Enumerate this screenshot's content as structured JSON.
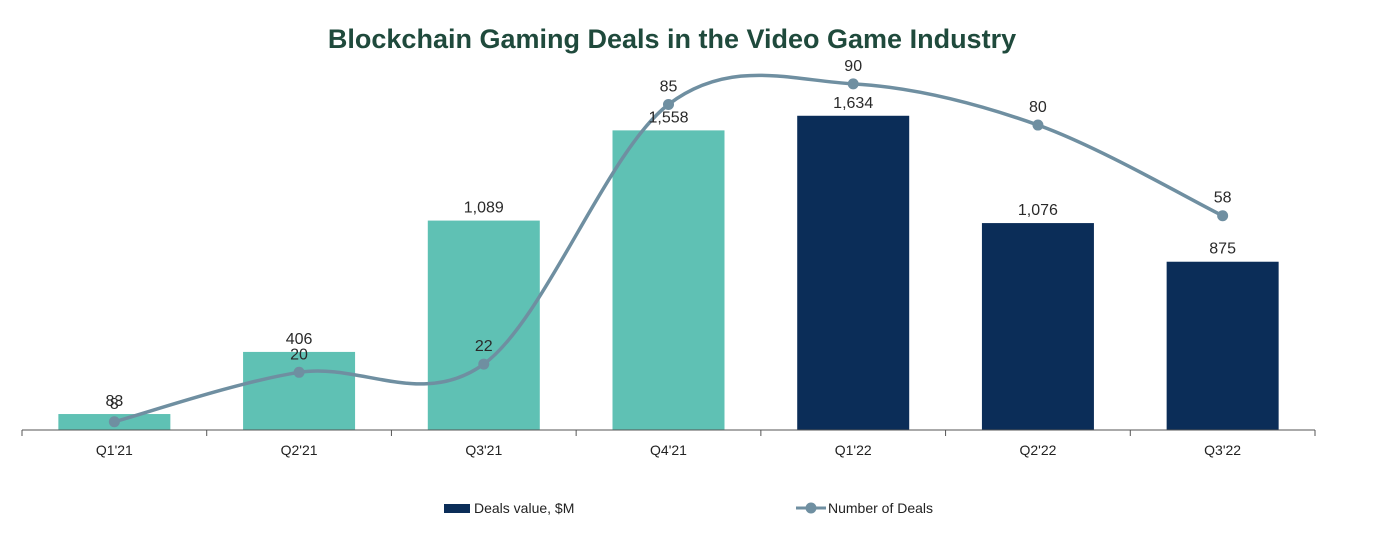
{
  "chart_data": {
    "type": "bar",
    "title": "Blockchain Gaming Deals in the Video Game Industry",
    "xlabel": "",
    "ylabel": "",
    "categories": [
      "Q1'21",
      "Q2'21",
      "Q3'21",
      "Q4'21",
      "Q1'22",
      "Q2'22",
      "Q3'22"
    ],
    "series": [
      {
        "name": "Deals value, $M",
        "kind": "bar",
        "values": [
          83,
          406,
          1089,
          1558,
          1634,
          1076,
          875
        ],
        "labels": [
          "83",
          "406",
          "1,089",
          "1,558",
          "1,634",
          "1,076",
          "875"
        ],
        "colors": [
          "#5fc1b4",
          "#5fc1b4",
          "#5fc1b4",
          "#5fc1b4",
          "#0b2d58",
          "#0b2d58",
          "#0b2d58"
        ],
        "axis": "left",
        "ylim": [
          0,
          1950
        ]
      },
      {
        "name": "Number of Deals",
        "kind": "line",
        "smooth": true,
        "values": [
          8,
          20,
          22,
          85,
          90,
          80,
          58
        ],
        "labels": [
          "8",
          "20",
          "22",
          "85",
          "90",
          "80",
          "58"
        ],
        "color": "#6f8fa1",
        "axis": "right",
        "ylim": [
          6,
          97
        ]
      }
    ],
    "legend": {
      "position": "bottom-center",
      "items": [
        {
          "label": "Deals value, $M",
          "color": "#0b2d58",
          "marker": "bar"
        },
        {
          "label": "Number of Deals",
          "color": "#6f8fa1",
          "marker": "line-dot"
        }
      ]
    },
    "grid": false
  }
}
